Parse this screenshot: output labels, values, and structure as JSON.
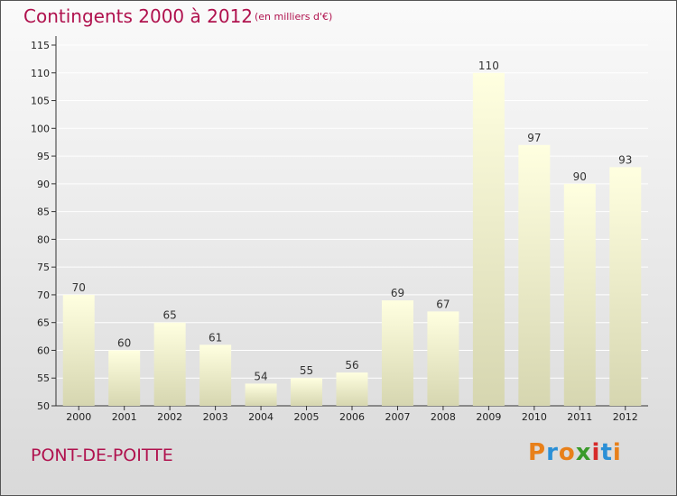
{
  "header": {
    "title": "Contingents 2000 à 2012",
    "subtitle": "(en milliers d'€)"
  },
  "footer": {
    "commune": "PONT-DE-POITTE",
    "logo_text": "Proxiti",
    "logo_colors": [
      "#e8801a",
      "#2a8fd6",
      "#e8801a",
      "#3a9a2a",
      "#d62a2a",
      "#2a8fd6",
      "#e8801a"
    ]
  },
  "colors": {
    "title": "#b0124e",
    "bar_top": "#ffffe0",
    "bar_bottom": "#d6d6b0",
    "grid": "#ffffff"
  },
  "chart_data": {
    "type": "bar",
    "categories": [
      "2000",
      "2001",
      "2002",
      "2003",
      "2004",
      "2005",
      "2006",
      "2007",
      "2008",
      "2009",
      "2010",
      "2011",
      "2012"
    ],
    "values": [
      70,
      60,
      65,
      61,
      54,
      55,
      56,
      69,
      67,
      110,
      97,
      90,
      93
    ],
    "ylim": [
      50,
      115
    ],
    "yticks": [
      50,
      55,
      60,
      65,
      70,
      75,
      80,
      85,
      90,
      95,
      100,
      105,
      110,
      115
    ],
    "grid": true,
    "data_labels": true
  }
}
